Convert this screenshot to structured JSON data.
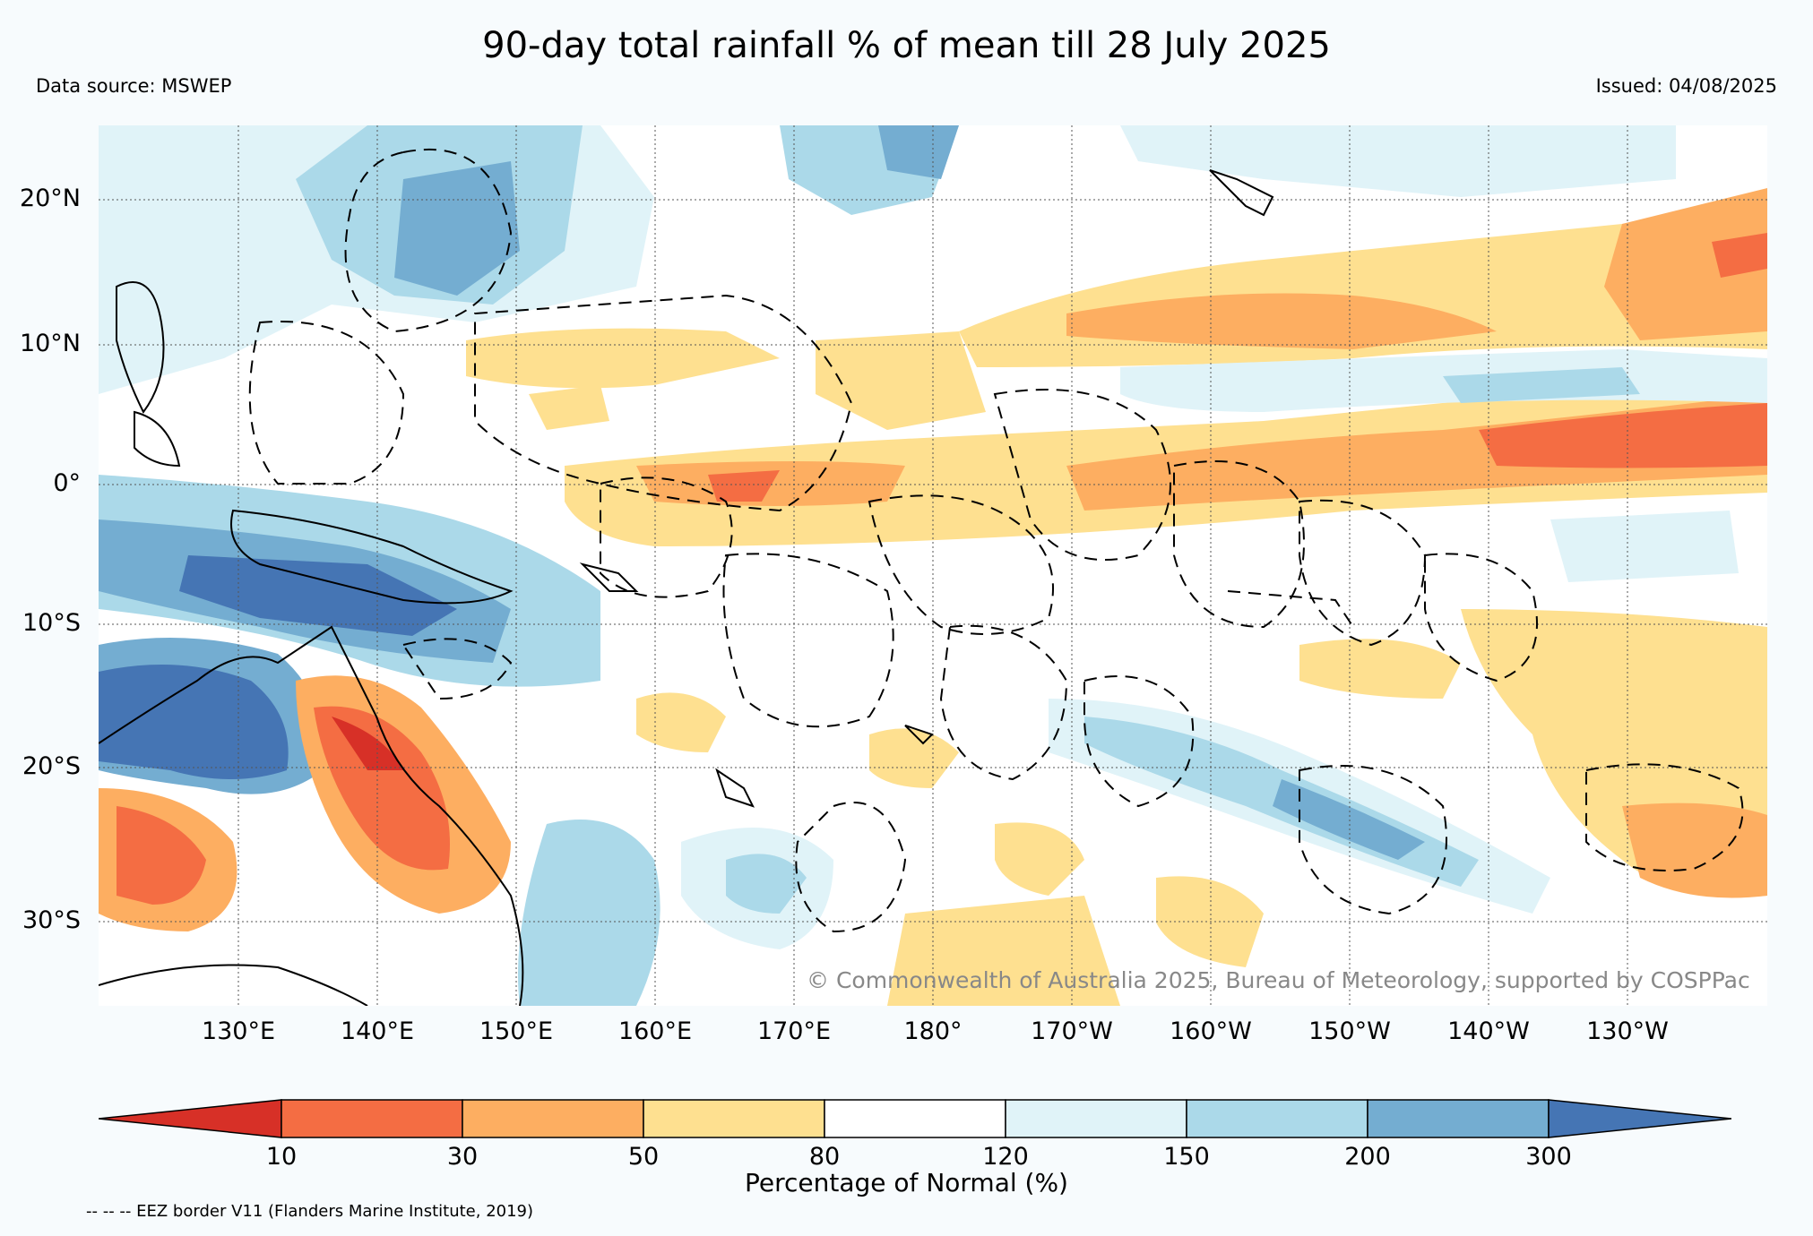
{
  "header": {
    "title": "90-day total rainfall % of mean till 28 July 2025",
    "source": "Data source: MSWEP",
    "issued": "Issued: 04/08/2025"
  },
  "map": {
    "lat_labels": [
      "20°N",
      "10°N",
      "0°",
      "10°S",
      "20°S",
      "30°S"
    ],
    "lon_labels": [
      "130°E",
      "140°E",
      "150°E",
      "160°E",
      "170°E",
      "180°",
      "170°W",
      "160°W",
      "150°W",
      "140°W",
      "130°W"
    ],
    "copyright": "© Commonwealth of Australia 2025, Bureau of Meteorology, supported by COSPPac",
    "extent": {
      "lon_min": 120,
      "lon_max": 240,
      "lat_min": -36,
      "lat_max": 25
    }
  },
  "legend": {
    "ticks": [
      "10",
      "30",
      "50",
      "80",
      "120",
      "150",
      "200",
      "300"
    ],
    "label": "Percentage of Normal (%)",
    "colors": [
      "#d73027",
      "#f46d43",
      "#fdae61",
      "#fee090",
      "#ffffff",
      "#e0f3f8",
      "#abd9e9",
      "#74add1",
      "#4575b4"
    ]
  },
  "footer": {
    "eez_note": "-- -- -- EEZ border V11 (Flanders Marine Institute, 2019)"
  }
}
